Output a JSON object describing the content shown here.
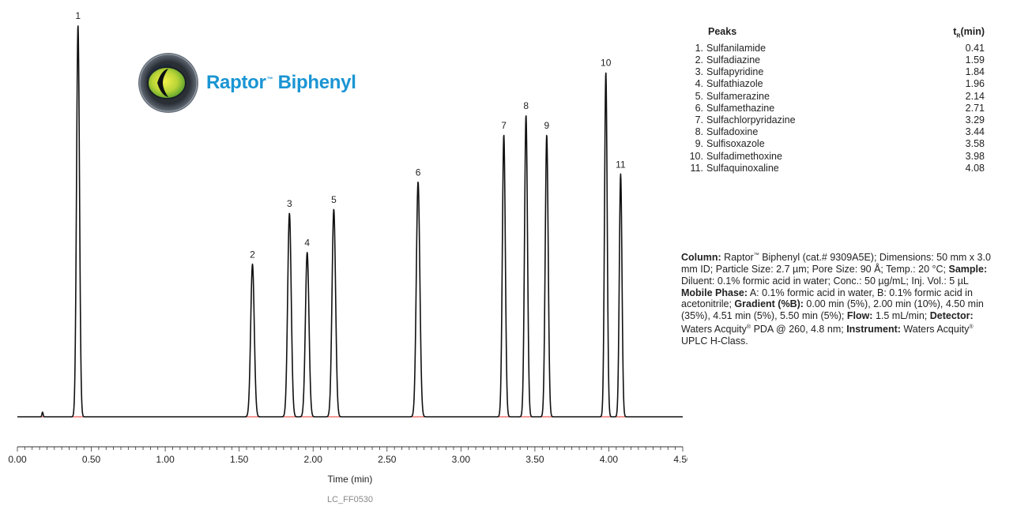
{
  "chart_data": {
    "type": "line",
    "title": "",
    "xlabel": "Time (min)",
    "ylabel": "",
    "xlim": [
      0.0,
      4.5
    ],
    "x_ticks": [
      "0.00",
      "0.50",
      "1.00",
      "1.50",
      "2.00",
      "2.50",
      "3.00",
      "3.50",
      "4.00",
      "4.50"
    ],
    "x_tick_values": [
      0.0,
      0.5,
      1.0,
      1.5,
      2.0,
      2.5,
      3.0,
      3.5,
      4.0,
      4.5
    ],
    "grid": false,
    "baseline_color": "#e3342f",
    "trace_color": "#111111",
    "peaks": [
      {
        "label": "1",
        "rt": 0.41,
        "height": 1.0,
        "width": 0.01
      },
      {
        "label": "2",
        "rt": 1.59,
        "height": 0.39,
        "width": 0.012
      },
      {
        "label": "3",
        "rt": 1.84,
        "height": 0.52,
        "width": 0.012
      },
      {
        "label": "4",
        "rt": 1.96,
        "height": 0.42,
        "width": 0.012
      },
      {
        "label": "5",
        "rt": 2.14,
        "height": 0.53,
        "width": 0.012
      },
      {
        "label": "6",
        "rt": 2.71,
        "height": 0.6,
        "width": 0.012
      },
      {
        "label": "7",
        "rt": 3.29,
        "height": 0.72,
        "width": 0.01
      },
      {
        "label": "8",
        "rt": 3.44,
        "height": 0.77,
        "width": 0.01
      },
      {
        "label": "9",
        "rt": 3.58,
        "height": 0.72,
        "width": 0.01
      },
      {
        "label": "10",
        "rt": 3.98,
        "height": 0.88,
        "width": 0.009
      },
      {
        "label": "11",
        "rt": 4.08,
        "height": 0.62,
        "width": 0.009
      }
    ],
    "artifact": {
      "rt": 0.17,
      "height": 0.012
    }
  },
  "figure_code": "LC_FF0530",
  "logo": {
    "brand": "Raptor",
    "tm": "™",
    "product": "Biphenyl",
    "brand_color": "#1a95d3"
  },
  "peak_table": {
    "header_name": "Peaks",
    "header_tr": "t",
    "header_tr_sub": "R",
    "header_tr_unit": "(min)",
    "rows": [
      {
        "num": "1.",
        "name": "Sulfanilamide",
        "tr": "0.41"
      },
      {
        "num": "2.",
        "name": "Sulfadiazine",
        "tr": "1.59"
      },
      {
        "num": "3.",
        "name": "Sulfapyridine",
        "tr": "1.84"
      },
      {
        "num": "4.",
        "name": "Sulfathiazole",
        "tr": "1.96"
      },
      {
        "num": "5.",
        "name": "Sulfamerazine",
        "tr": "2.14"
      },
      {
        "num": "6.",
        "name": "Sulfamethazine",
        "tr": "2.71"
      },
      {
        "num": "7.",
        "name": "Sulfachlorpyridazine",
        "tr": "3.29"
      },
      {
        "num": "8.",
        "name": "Sulfadoxine",
        "tr": "3.44"
      },
      {
        "num": "9.",
        "name": "Sulfisoxazole",
        "tr": "3.58"
      },
      {
        "num": "10.",
        "name": "Sulfadimethoxine",
        "tr": "3.98"
      },
      {
        "num": "11.",
        "name": "Sulfaquinoxaline",
        "tr": "4.08"
      }
    ]
  },
  "conditions": {
    "column_label": "Column:",
    "column_text_1": "Raptor",
    "column_tm": "™",
    "column_text_2": "Biphenyl (cat.# 9309A5E); Dimensions: 50 mm x 3.0 mm ID; Particle Size: 2.7 µm; Pore Size: 90 Å; Temp.: 20 °C;",
    "sample_label": "Sample:",
    "sample_text": "Diluent: 0.1% formic acid in water; Conc.: 50 µg/mL; Inj. Vol.: 5 µL",
    "mobile_label": "Mobile Phase:",
    "mobile_text": "A: 0.1% formic acid in water, B: 0.1% formic acid in acetonitrile;",
    "gradient_label": "Gradient (%B):",
    "gradient_text": "0.00 min (5%), 2.00 min (10%), 4.50 min (35%), 4.51 min (5%), 5.50 min (5%);",
    "flow_label": "Flow:",
    "flow_text": "1.5 mL/min;",
    "detector_label": "Detector:",
    "detector_text_1": "Waters Acquity",
    "detector_reg": "®",
    "detector_text_2": "PDA @ 260, 4.8 nm;",
    "instrument_label": "Instrument:",
    "instrument_text_1": "Waters Acquity",
    "instrument_reg": "®",
    "instrument_text_2": "UPLC H-Class."
  }
}
